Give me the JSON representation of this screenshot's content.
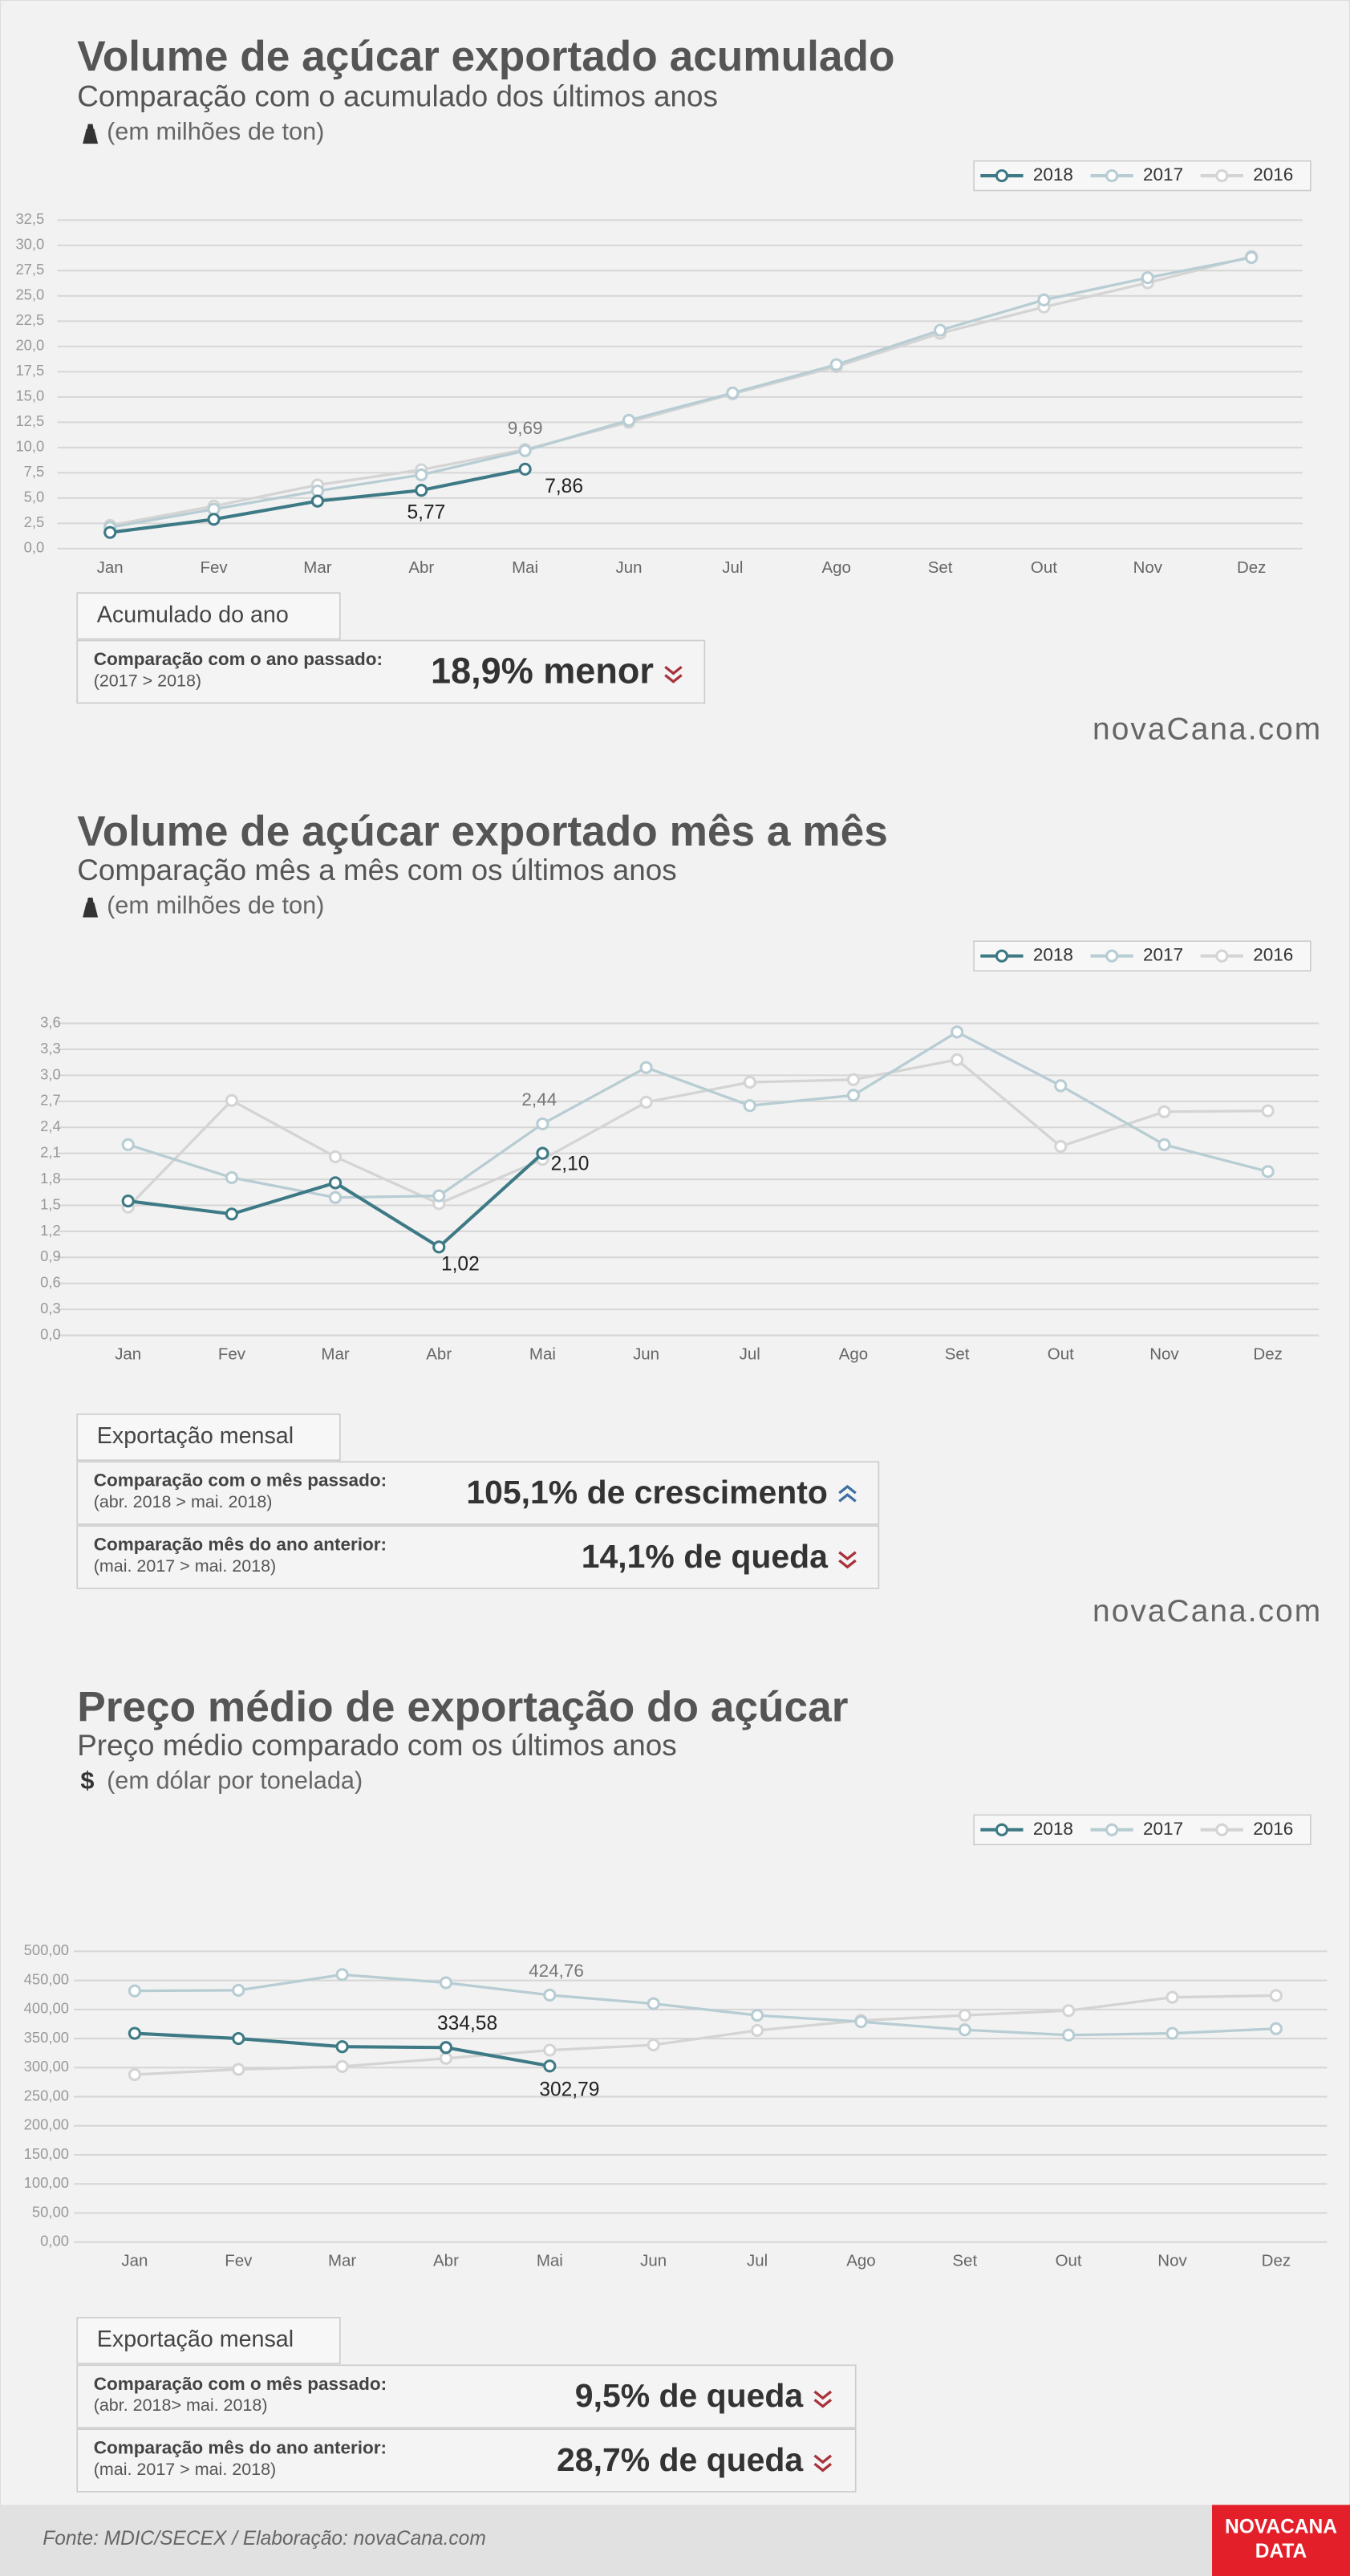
{
  "chart_data": [
    {
      "type": "line",
      "title": "Volume de açúcar exportado acumulado",
      "subtitle": "Comparação com o acumulado dos últimos anos",
      "unit": "(em milhões de ton)",
      "categories": [
        "Jan",
        "Fev",
        "Mar",
        "Abr",
        "Mai",
        "Jun",
        "Jul",
        "Ago",
        "Set",
        "Out",
        "Nov",
        "Dez"
      ],
      "series": [
        {
          "name": "2018",
          "color": "#3d7a85",
          "values": [
            1.6,
            2.9,
            4.7,
            5.77,
            7.86,
            null,
            null,
            null,
            null,
            null,
            null,
            null
          ],
          "value_labels": [
            null,
            null,
            null,
            "5,77",
            "7,86",
            null,
            null,
            null,
            null,
            null,
            null,
            null
          ]
        },
        {
          "name": "2017",
          "color": "#b7cdd3",
          "values": [
            2.1,
            3.9,
            5.7,
            7.3,
            9.69,
            12.7,
            15.4,
            18.2,
            21.6,
            24.6,
            26.8,
            28.8
          ],
          "value_labels": [
            null,
            null,
            null,
            null,
            "9,69",
            null,
            null,
            null,
            null,
            null,
            null,
            null
          ]
        },
        {
          "name": "2016",
          "color": "#d4d4d4",
          "values": [
            2.3,
            4.2,
            6.3,
            7.8,
            9.8,
            12.5,
            15.3,
            18.0,
            21.3,
            23.9,
            26.3,
            28.9
          ]
        }
      ],
      "ylim": [
        0,
        32.5
      ],
      "yticks": [
        {
          "value": 0,
          "label": "0,0"
        },
        {
          "value": 2.5,
          "label": "2,5"
        },
        {
          "value": 5,
          "label": "5,0"
        },
        {
          "value": 7.5,
          "label": "7,5"
        },
        {
          "value": 10,
          "label": "10,0"
        },
        {
          "value": 12.5,
          "label": "12,5"
        },
        {
          "value": 15,
          "label": "15,0"
        },
        {
          "value": 17.5,
          "label": "17,5"
        },
        {
          "value": 20,
          "label": "20,0"
        },
        {
          "value": 22.5,
          "label": "22,5"
        },
        {
          "value": 25,
          "label": "25,0"
        },
        {
          "value": 27.5,
          "label": "27,5"
        },
        {
          "value": 30,
          "label": "30,0"
        },
        {
          "value": 32.5,
          "label": "32,5"
        }
      ],
      "grid": true,
      "legend": "top-right",
      "summary": {
        "heading": "Acumulado do ano",
        "rows": [
          {
            "label": "Comparação com o ano passado:",
            "sublabel": "(2017 > 2018)",
            "value": "18,9% menor",
            "trend": "down"
          }
        ]
      },
      "logo": "novaCana.com"
    },
    {
      "type": "line",
      "title": "Volume de açúcar exportado mês a mês",
      "subtitle": "Comparação mês a mês com os últimos anos",
      "unit": "(em milhões de ton)",
      "categories": [
        "Jan",
        "Fev",
        "Mar",
        "Abr",
        "Mai",
        "Jun",
        "Jul",
        "Ago",
        "Set",
        "Out",
        "Nov",
        "Dez"
      ],
      "series": [
        {
          "name": "2018",
          "color": "#3d7a85",
          "values": [
            1.55,
            1.4,
            1.76,
            1.02,
            2.1,
            null,
            null,
            null,
            null,
            null,
            null,
            null
          ],
          "value_labels": [
            null,
            null,
            null,
            "1,02",
            "2,10",
            null,
            null,
            null,
            null,
            null,
            null,
            null
          ]
        },
        {
          "name": "2017",
          "color": "#b7cdd3",
          "values": [
            2.2,
            1.82,
            1.59,
            1.61,
            2.44,
            3.09,
            2.65,
            2.77,
            3.5,
            2.88,
            2.2,
            1.89
          ],
          "value_labels": [
            null,
            null,
            null,
            null,
            "2,44",
            null,
            null,
            null,
            null,
            null,
            null,
            null
          ]
        },
        {
          "name": "2016",
          "color": "#d4d4d4",
          "values": [
            1.48,
            2.71,
            2.06,
            1.52,
            2.03,
            2.69,
            2.92,
            2.95,
            3.18,
            2.18,
            2.58,
            2.59
          ]
        }
      ],
      "ylim": [
        0,
        3.6
      ],
      "yticks": [
        {
          "value": 0,
          "label": "0,0"
        },
        {
          "value": 0.3,
          "label": "0,3"
        },
        {
          "value": 0.6,
          "label": "0,6"
        },
        {
          "value": 0.9,
          "label": "0,9"
        },
        {
          "value": 1.2,
          "label": "1,2"
        },
        {
          "value": 1.5,
          "label": "1,5"
        },
        {
          "value": 1.8,
          "label": "1,8"
        },
        {
          "value": 2.1,
          "label": "2,1"
        },
        {
          "value": 2.4,
          "label": "2,4"
        },
        {
          "value": 2.7,
          "label": "2,7"
        },
        {
          "value": 3.0,
          "label": "3,0"
        },
        {
          "value": 3.3,
          "label": "3,3"
        },
        {
          "value": 3.6,
          "label": "3,6"
        }
      ],
      "grid": true,
      "legend": "top-right",
      "summary": {
        "heading": "Exportação mensal",
        "rows": [
          {
            "label": "Comparação com o mês passado:",
            "sublabel": "(abr. 2018 > mai. 2018)",
            "value": "105,1% de crescimento",
            "trend": "up"
          },
          {
            "label": "Comparação mês do ano anterior:",
            "sublabel": "(mai. 2017 > mai. 2018)",
            "value": "14,1% de queda",
            "trend": "down"
          }
        ]
      },
      "logo": "novaCana.com"
    },
    {
      "type": "line",
      "title": "Preço médio de exportação do açúcar",
      "subtitle": "Preço médio comparado com os últimos anos",
      "unit_symbol": "$",
      "unit": "(em dólar por tonelada)",
      "categories": [
        "Jan",
        "Fev",
        "Mar",
        "Abr",
        "Mai",
        "Jun",
        "Jul",
        "Ago",
        "Set",
        "Out",
        "Nov",
        "Dez"
      ],
      "series": [
        {
          "name": "2018",
          "color": "#3d7a85",
          "values": [
            359,
            350,
            336,
            334.58,
            302.79,
            null,
            null,
            null,
            null,
            null,
            null,
            null
          ],
          "value_labels": [
            null,
            null,
            null,
            "334,58",
            "302,79",
            null,
            null,
            null,
            null,
            null,
            null,
            null
          ]
        },
        {
          "name": "2017",
          "color": "#b7cdd3",
          "values": [
            432,
            433,
            460,
            446,
            424.76,
            410,
            390,
            379,
            365,
            356,
            359,
            367
          ],
          "value_labels": [
            null,
            null,
            null,
            null,
            "424,76",
            null,
            null,
            null,
            null,
            null,
            null,
            null
          ]
        },
        {
          "name": "2016",
          "color": "#d4d4d4",
          "values": [
            288,
            297,
            302,
            316,
            330,
            339,
            364,
            381,
            390,
            398,
            421,
            424
          ]
        }
      ],
      "ylim": [
        0,
        500
      ],
      "yticks": [
        {
          "value": 0,
          "label": "0,00"
        },
        {
          "value": 50,
          "label": "50,00"
        },
        {
          "value": 100,
          "label": "100,00"
        },
        {
          "value": 150,
          "label": "150,00"
        },
        {
          "value": 200,
          "label": "200,00"
        },
        {
          "value": 250,
          "label": "250,00"
        },
        {
          "value": 300,
          "label": "300,00"
        },
        {
          "value": 350,
          "label": "350,00"
        },
        {
          "value": 400,
          "label": "400,00"
        },
        {
          "value": 450,
          "label": "450,00"
        },
        {
          "value": 500,
          "label": "500,00"
        }
      ],
      "grid": true,
      "legend": "top-right",
      "summary": {
        "heading": "Exportação mensal",
        "rows": [
          {
            "label": "Comparação com o mês passado:",
            "sublabel": "(abr. 2018> mai. 2018)",
            "value": "9,5% de queda",
            "trend": "down"
          },
          {
            "label": "Comparação mês do ano anterior:",
            "sublabel": "(mai. 2017 > mai. 2018)",
            "value": "28,7% de queda",
            "trend": "down"
          }
        ]
      }
    }
  ],
  "footer": {
    "source": "Fonte: MDIC/SECEX  / Elaboração: novaCana.com",
    "logo_top": "NOVACANA",
    "logo_bottom": "DATA"
  }
}
